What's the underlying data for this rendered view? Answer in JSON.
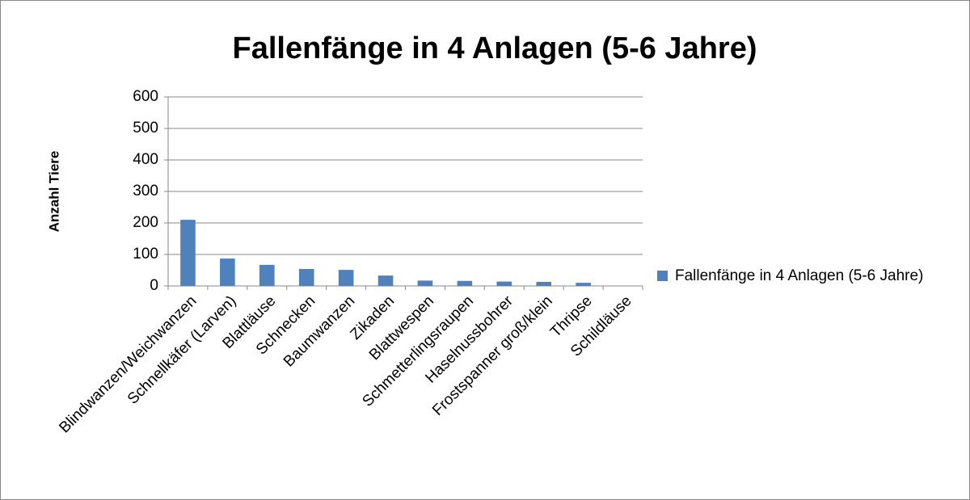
{
  "chart_data": {
    "type": "bar",
    "title": "Fallenfänge in 4 Anlagen (5-6 Jahre)",
    "y_label": "Anzahl Tiere",
    "categories": [
      "Blindwanzen/Weichwanzen",
      "Schnellkäfer (Larven)",
      "Blattläuse",
      "Schnecken",
      "Baumwanzen",
      "Zikaden",
      "Blattwespen",
      "Schmetterlingsraupen",
      "Haselnussbohrer",
      "Frostspanner groß/klein",
      "Thripse",
      "Schildläuse"
    ],
    "series": [
      {
        "name": "Fallenfänge in 4 Anlagen (5-6 Jahre)",
        "color": "#4f81bd",
        "values": [
          210,
          87,
          67,
          54,
          51,
          33,
          17,
          16,
          14,
          13,
          10,
          0
        ]
      }
    ],
    "ylim": [
      0,
      600
    ],
    "yticks": [
      0,
      100,
      200,
      300,
      400,
      500,
      600
    ],
    "grid": true,
    "legend": "right"
  }
}
